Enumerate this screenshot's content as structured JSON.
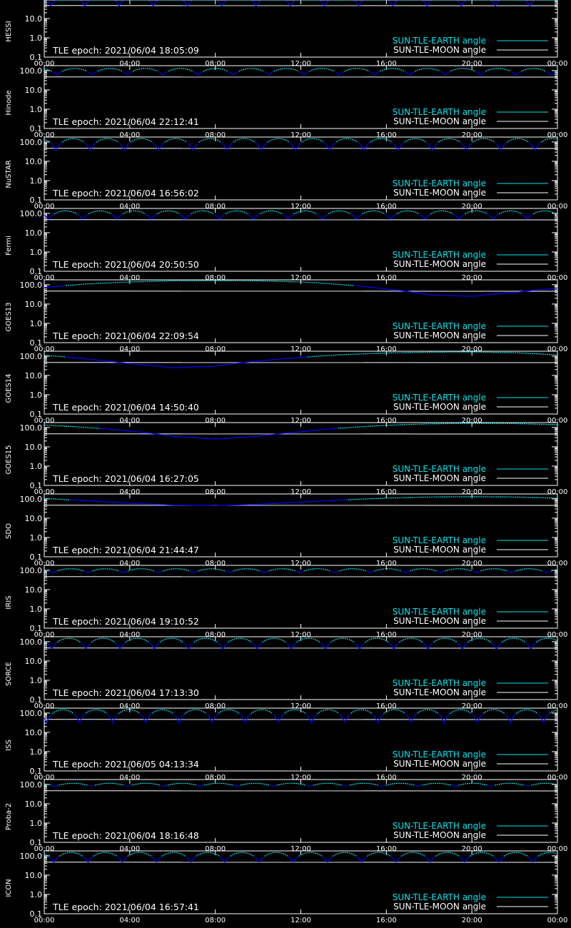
{
  "chart_data": {
    "type": "line",
    "y_scale": "log",
    "ylim": [
      0.1,
      180.0
    ],
    "y_ticks": [
      0.1,
      1.0,
      10.0,
      100.0
    ],
    "y_tick_labels": [
      "0.1",
      "1.0",
      "10.0",
      "100.0"
    ],
    "x_range_hours": [
      0,
      24
    ],
    "x_ticks_hours": [
      0,
      4,
      8,
      12,
      16,
      20,
      24
    ],
    "x_tick_labels": [
      "00:00",
      "04:00",
      "08:00",
      "12:00",
      "16:00",
      "20:00",
      "00:00"
    ],
    "legend": [
      "SUN-TLE-EARTH angle",
      "SUN-TLE-MOON angle"
    ],
    "legend_position": "bottom-right",
    "colors": {
      "earth_angle": "#00e5ee",
      "earth_angle_dark": "#0000ff",
      "moon_angle": "#ffffff",
      "axis": "#ffffff",
      "background": "#000000"
    },
    "panels": [
      {
        "satellite": "HESSI",
        "epoch": "TLE epoch: 2021/06/04 18:05:09",
        "earth_angle": {
          "kind": "orbital",
          "max": 150,
          "min": 45,
          "period_hours": 1.6,
          "phase_hours": 0.3
        },
        "moon_angle": {
          "start": 47,
          "end": 46
        }
      },
      {
        "satellite": "Hinode",
        "epoch": "TLE epoch: 2021/06/04 22:12:41",
        "earth_angle": {
          "kind": "orbital",
          "max": 130,
          "min": 60,
          "period_hours": 1.65,
          "phase_hours": 0.6
        },
        "moon_angle": {
          "start": 47,
          "end": 46
        }
      },
      {
        "satellite": "NuSTAR",
        "epoch": "TLE epoch: 2021/06/04 16:56:02",
        "earth_angle": {
          "kind": "orbital",
          "max": 150,
          "min": 35,
          "period_hours": 1.6,
          "phase_hours": 0.55
        },
        "moon_angle": {
          "start": 47,
          "end": 46
        }
      },
      {
        "satellite": "Fermi",
        "epoch": "TLE epoch: 2021/06/04 20:50:50",
        "earth_angle": {
          "kind": "orbital",
          "max": 135,
          "min": 50,
          "period_hours": 1.6,
          "phase_hours": 0.2
        },
        "moon_angle": {
          "start": 47,
          "end": 46
        }
      },
      {
        "satellite": "GOES13",
        "epoch": "TLE epoch: 2021/06/04 22:09:54",
        "earth_angle": {
          "kind": "geo",
          "series": [
            [
              0,
              70
            ],
            [
              2,
              110
            ],
            [
              4,
              140
            ],
            [
              6,
              160
            ],
            [
              8,
              165
            ],
            [
              10,
              160
            ],
            [
              12,
              140
            ],
            [
              14,
              100
            ],
            [
              16,
              60
            ],
            [
              18,
              30
            ],
            [
              20,
              25
            ],
            [
              22,
              40
            ],
            [
              24,
              65
            ]
          ]
        },
        "moon_angle": {
          "start": 47,
          "end": 46
        }
      },
      {
        "satellite": "GOES14",
        "epoch": "TLE epoch: 2021/06/04 14:50:40",
        "earth_angle": {
          "kind": "geo",
          "series": [
            [
              0,
              110
            ],
            [
              2,
              70
            ],
            [
              4,
              40
            ],
            [
              6,
              25
            ],
            [
              8,
              30
            ],
            [
              10,
              55
            ],
            [
              12,
              85
            ],
            [
              14,
              120
            ],
            [
              16,
              145
            ],
            [
              18,
              160
            ],
            [
              20,
              165
            ],
            [
              22,
              150
            ],
            [
              24,
              115
            ]
          ]
        },
        "moon_angle": {
          "start": 47,
          "end": 46
        }
      },
      {
        "satellite": "GOES15",
        "epoch": "TLE epoch: 2021/06/04 16:27:05",
        "earth_angle": {
          "kind": "geo",
          "series": [
            [
              0,
              135
            ],
            [
              2,
              100
            ],
            [
              4,
              65
            ],
            [
              6,
              35
            ],
            [
              8,
              25
            ],
            [
              10,
              35
            ],
            [
              12,
              60
            ],
            [
              14,
              95
            ],
            [
              16,
              130
            ],
            [
              18,
              155
            ],
            [
              20,
              165
            ],
            [
              22,
              160
            ],
            [
              24,
              140
            ]
          ]
        },
        "moon_angle": {
          "start": 47,
          "end": 46
        }
      },
      {
        "satellite": "SDO",
        "epoch": "TLE epoch: 2021/06/04 21:44:47",
        "earth_angle": {
          "kind": "geo",
          "series": [
            [
              0,
              105
            ],
            [
              2,
              80
            ],
            [
              4,
              60
            ],
            [
              6,
              48
            ],
            [
              8,
              45
            ],
            [
              10,
              52
            ],
            [
              12,
              68
            ],
            [
              14,
              88
            ],
            [
              16,
              110
            ],
            [
              18,
              125
            ],
            [
              20,
              130
            ],
            [
              22,
              125
            ],
            [
              24,
              110
            ]
          ]
        },
        "moon_angle": {
          "start": 47,
          "end": 46
        }
      },
      {
        "satellite": "IRIS",
        "epoch": "TLE epoch: 2021/06/04 19:10:52",
        "earth_angle": {
          "kind": "orbital",
          "max": 120,
          "min": 75,
          "period_hours": 1.65,
          "phase_hours": 0.4
        },
        "moon_angle": {
          "start": 47,
          "end": 46
        }
      },
      {
        "satellite": "SORCE",
        "epoch": "TLE epoch: 2021/06/04 17:13:30",
        "earth_angle": {
          "kind": "orbital",
          "max": 150,
          "min": 40,
          "period_hours": 1.6,
          "phase_hours": 0.35
        },
        "moon_angle": {
          "start": 47,
          "end": 46
        }
      },
      {
        "satellite": "ISS",
        "epoch": "TLE epoch: 2021/06/05 04:13:34",
        "earth_angle": {
          "kind": "orbital",
          "max": 150,
          "min": 30,
          "period_hours": 1.55,
          "phase_hours": 0.1
        },
        "moon_angle": {
          "start": 47,
          "end": 46
        }
      },
      {
        "satellite": "Proba-2",
        "epoch": "TLE epoch: 2021/06/04 18:16:48",
        "earth_angle": {
          "kind": "orbital",
          "max": 115,
          "min": 80,
          "period_hours": 1.7,
          "phase_hours": 0.5
        },
        "moon_angle": {
          "start": 47,
          "end": 46
        }
      },
      {
        "satellite": "ICON",
        "epoch": "TLE epoch: 2021/06/04 16:57:41",
        "earth_angle": {
          "kind": "orbital",
          "max": 150,
          "min": 45,
          "period_hours": 1.6,
          "phase_hours": 0.45
        },
        "moon_angle": {
          "start": 47,
          "end": 46
        }
      }
    ]
  }
}
